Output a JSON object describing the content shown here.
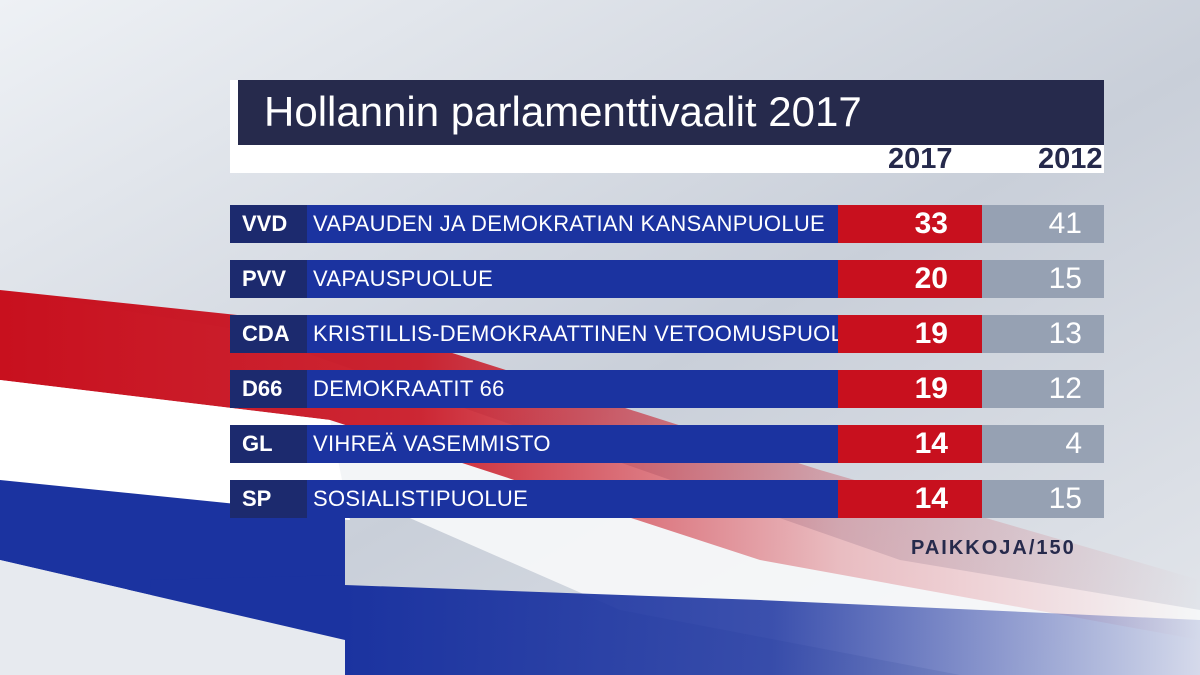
{
  "colors": {
    "title_bg": "#262a4c",
    "abbr_bg": "#1c2a6e",
    "name_bg": "#1b33a0",
    "value_2017_bg": "#c8101e",
    "value_2012_bg": "#96a1b3",
    "flag_red": "#c8101e",
    "flag_white": "#ffffff",
    "flag_blue": "#1b33a0"
  },
  "chart_data": {
    "type": "table",
    "title": "Hollannin parlamenttivaalit 2017",
    "columns": [
      "2017",
      "2012"
    ],
    "rows": [
      {
        "abbr": "VVD",
        "name": "VAPAUDEN JA DEMOKRATIAN KANSANPUOLUE",
        "v2017": 33,
        "v2012": 41
      },
      {
        "abbr": "PVV",
        "name": "VAPAUSPUOLUE",
        "v2017": 20,
        "v2012": 15
      },
      {
        "abbr": "CDA",
        "name": "KRISTILLIS-DEMOKRAATTINEN VETOOMUSPUOLUE",
        "v2017": 19,
        "v2012": 13
      },
      {
        "abbr": "D66",
        "name": "DEMOKRAATIT 66",
        "v2017": 19,
        "v2012": 12
      },
      {
        "abbr": "GL",
        "name": "VIHREÄ VASEMMISTO",
        "v2017": 14,
        "v2012": 4
      },
      {
        "abbr": "SP",
        "name": "SOSIALISTIPUOLUE",
        "v2017": 14,
        "v2012": 15
      }
    ],
    "footnote": "PAIKKOJA/150"
  }
}
